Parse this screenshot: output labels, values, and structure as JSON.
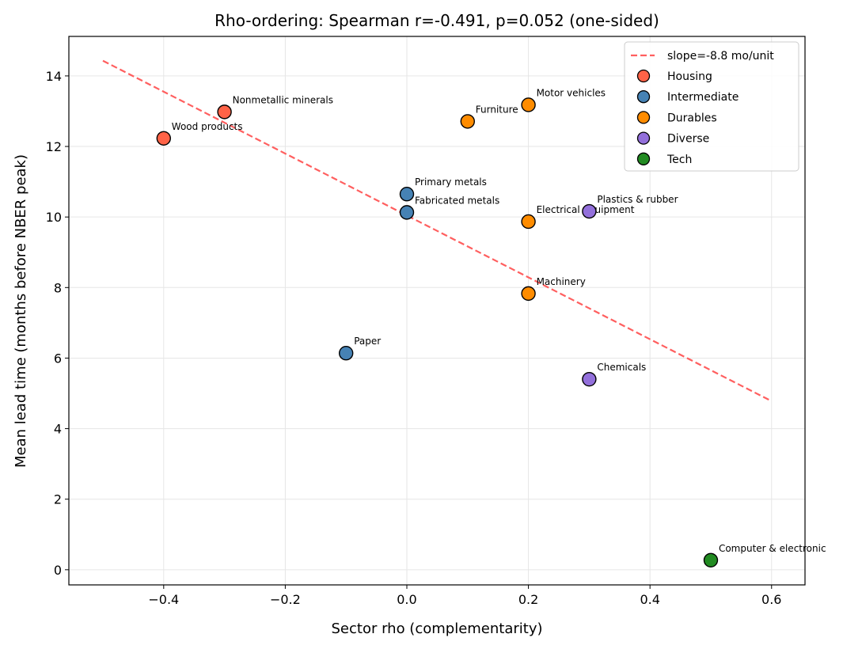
{
  "chart_data": {
    "type": "scatter",
    "title": "Rho-ordering: Spearman r=-0.491, p=0.052 (one-sided)",
    "xlabel": "Sector rho (complementarity)",
    "ylabel": "Mean lead time (months before NBER peak)",
    "xlim": [
      -0.556,
      0.655
    ],
    "ylim": [
      -0.43,
      15.12
    ],
    "xticks": [
      -0.4,
      -0.2,
      0.0,
      0.2,
      0.4,
      0.6
    ],
    "xtick_labels": [
      "−0.4",
      "−0.2",
      "0.0",
      "0.2",
      "0.4",
      "0.6"
    ],
    "yticks": [
      0,
      2,
      4,
      6,
      8,
      10,
      12,
      14
    ],
    "ytick_labels": [
      "0",
      "2",
      "4",
      "6",
      "8",
      "10",
      "12",
      "14"
    ],
    "grid": true,
    "legend_position": "top-right",
    "fit_line": {
      "label": "slope=-8.8 mo/unit",
      "x": [
        -0.5,
        0.6
      ],
      "y": [
        14.43,
        4.78
      ],
      "color": "#ff5f5f",
      "style": "dashed"
    },
    "series": [
      {
        "name": "Housing",
        "color": "#ff6347",
        "points": [
          {
            "label": "Wood products",
            "x": -0.4,
            "y": 12.23
          },
          {
            "label": "Nonmetallic minerals",
            "x": -0.3,
            "y": 12.98
          }
        ]
      },
      {
        "name": "Intermediate",
        "color": "#4682b4",
        "points": [
          {
            "label": "Primary metals",
            "x": 0.0,
            "y": 10.65
          },
          {
            "label": "Fabricated metals",
            "x": 0.0,
            "y": 10.13
          },
          {
            "label": "Paper",
            "x": -0.1,
            "y": 6.14
          }
        ]
      },
      {
        "name": "Durables",
        "color": "#ff8c00",
        "points": [
          {
            "label": "Furniture",
            "x": 0.1,
            "y": 12.71
          },
          {
            "label": "Motor vehicles",
            "x": 0.2,
            "y": 13.18
          },
          {
            "label": "Electrical equipment",
            "x": 0.2,
            "y": 9.87
          },
          {
            "label": "Machinery",
            "x": 0.2,
            "y": 7.83
          }
        ]
      },
      {
        "name": "Diverse",
        "color": "#9370db",
        "points": [
          {
            "label": "Plastics & rubber",
            "x": 0.3,
            "y": 10.16
          },
          {
            "label": "Chemicals",
            "x": 0.3,
            "y": 5.4
          }
        ]
      },
      {
        "name": "Tech",
        "color": "#228b22",
        "points": [
          {
            "label": "Computer & electronic",
            "x": 0.5,
            "y": 0.27
          }
        ]
      }
    ]
  }
}
